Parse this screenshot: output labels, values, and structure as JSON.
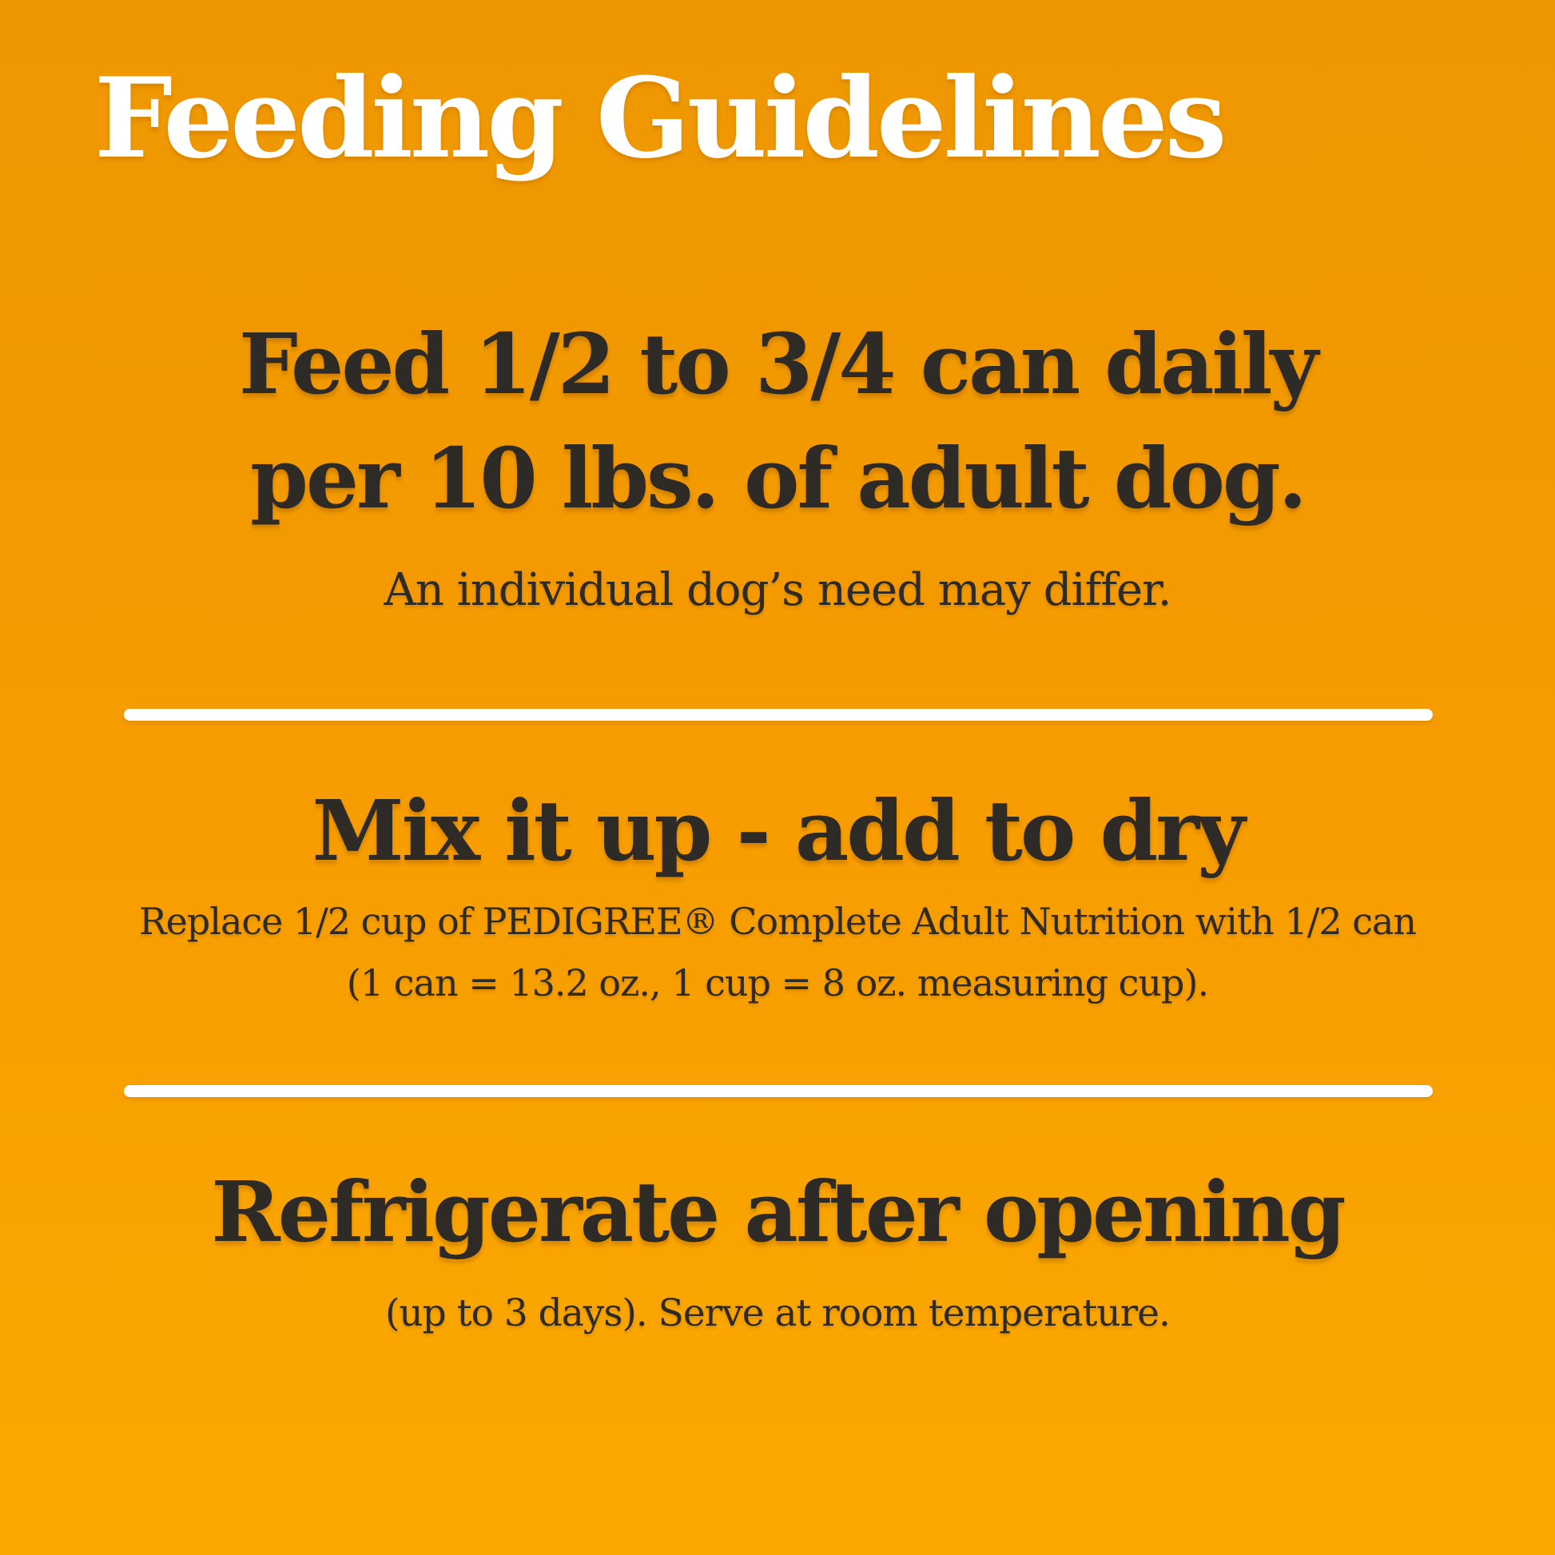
{
  "page": {
    "title": "Feeding Guidelines",
    "colors": {
      "background_top": "#EE9701",
      "background_bottom": "#FBA900",
      "title_text": "#FFFFFF",
      "body_text": "#2E2A25",
      "divider": "#FFFFFF"
    }
  },
  "sections": [
    {
      "heading_line1": "Feed 1/2 to 3/4 can daily",
      "heading_line2": "per 10 lbs. of adult dog.",
      "note": "An individual dog’s need may differ."
    },
    {
      "heading": "Mix it up - add to dry",
      "detail_line1": "Replace 1/2 cup of PEDIGREE® Complete Adult Nutrition with 1/2 can",
      "detail_line2": "(1 can = 13.2 oz., 1 cup = 8 oz. measuring cup)."
    },
    {
      "heading": "Refrigerate after opening",
      "note": "(up to 3 days). Serve at room temperature."
    }
  ]
}
